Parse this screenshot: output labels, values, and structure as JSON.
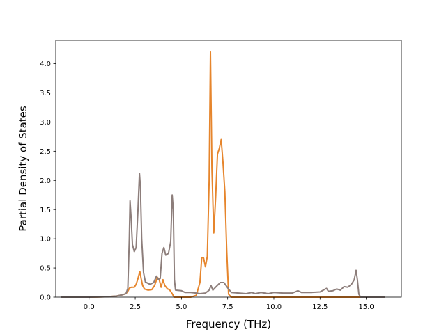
{
  "chart_data": {
    "type": "line",
    "title": "",
    "xlabel": "Frequency (THz)",
    "ylabel": "Partial Density of States",
    "xlim": [
      -1.8,
      16.9
    ],
    "ylim": [
      0.0,
      4.4
    ],
    "xticks": [
      0.0,
      2.5,
      5.0,
      7.5,
      10.0,
      12.5,
      15.0
    ],
    "xtick_labels": [
      "0.0",
      "2.5",
      "5.0",
      "7.5",
      "10.0",
      "12.5",
      "15.0"
    ],
    "yticks": [
      0.0,
      0.5,
      1.0,
      1.5,
      2.0,
      2.5,
      3.0,
      3.5,
      4.0
    ],
    "ytick_labels": [
      "0.0",
      "0.5",
      "1.0",
      "1.5",
      "2.0",
      "2.5",
      "3.0",
      "3.5",
      "4.0"
    ],
    "grid": false,
    "legend": "none",
    "series": [
      {
        "color": "#e6852c",
        "points": [
          [
            -1.5,
            0.0
          ],
          [
            0.0,
            0.0
          ],
          [
            0.5,
            0.003
          ],
          [
            1.0,
            0.008
          ],
          [
            1.5,
            0.02
          ],
          [
            1.8,
            0.04
          ],
          [
            2.0,
            0.06
          ],
          [
            2.1,
            0.1
          ],
          [
            2.2,
            0.16
          ],
          [
            2.3,
            0.17
          ],
          [
            2.45,
            0.17
          ],
          [
            2.55,
            0.22
          ],
          [
            2.65,
            0.32
          ],
          [
            2.75,
            0.44
          ],
          [
            2.82,
            0.32
          ],
          [
            2.9,
            0.2
          ],
          [
            3.0,
            0.14
          ],
          [
            3.2,
            0.12
          ],
          [
            3.4,
            0.13
          ],
          [
            3.55,
            0.2
          ],
          [
            3.7,
            0.34
          ],
          [
            3.8,
            0.3
          ],
          [
            3.9,
            0.17
          ],
          [
            4.0,
            0.3
          ],
          [
            4.1,
            0.2
          ],
          [
            4.25,
            0.14
          ],
          [
            4.35,
            0.13
          ],
          [
            4.5,
            0.06
          ],
          [
            4.6,
            0.0
          ],
          [
            5.5,
            0.0
          ],
          [
            5.8,
            0.03
          ],
          [
            6.0,
            0.25
          ],
          [
            6.1,
            0.68
          ],
          [
            6.2,
            0.67
          ],
          [
            6.3,
            0.52
          ],
          [
            6.4,
            0.7
          ],
          [
            6.5,
            2.0
          ],
          [
            6.57,
            4.2
          ],
          [
            6.65,
            2.2
          ],
          [
            6.75,
            1.1
          ],
          [
            6.85,
            1.7
          ],
          [
            6.95,
            2.45
          ],
          [
            7.05,
            2.55
          ],
          [
            7.15,
            2.7
          ],
          [
            7.25,
            2.3
          ],
          [
            7.35,
            1.8
          ],
          [
            7.45,
            0.8
          ],
          [
            7.55,
            0.05
          ],
          [
            7.7,
            0.0
          ],
          [
            16.0,
            0.0
          ]
        ]
      },
      {
        "color": "#8d7e7b",
        "points": [
          [
            -1.5,
            0.0
          ],
          [
            0.0,
            0.0
          ],
          [
            0.5,
            0.003
          ],
          [
            1.0,
            0.008
          ],
          [
            1.5,
            0.02
          ],
          [
            1.8,
            0.04
          ],
          [
            2.0,
            0.06
          ],
          [
            2.1,
            0.15
          ],
          [
            2.18,
            1.0
          ],
          [
            2.22,
            1.65
          ],
          [
            2.28,
            1.35
          ],
          [
            2.35,
            0.9
          ],
          [
            2.45,
            0.78
          ],
          [
            2.55,
            0.85
          ],
          [
            2.65,
            1.5
          ],
          [
            2.73,
            2.12
          ],
          [
            2.78,
            1.9
          ],
          [
            2.85,
            1.0
          ],
          [
            2.95,
            0.42
          ],
          [
            3.05,
            0.26
          ],
          [
            3.3,
            0.22
          ],
          [
            3.5,
            0.25
          ],
          [
            3.65,
            0.36
          ],
          [
            3.75,
            0.3
          ],
          [
            3.85,
            0.32
          ],
          [
            3.95,
            0.75
          ],
          [
            4.05,
            0.85
          ],
          [
            4.15,
            0.72
          ],
          [
            4.3,
            0.75
          ],
          [
            4.42,
            0.95
          ],
          [
            4.5,
            1.75
          ],
          [
            4.56,
            1.5
          ],
          [
            4.62,
            0.3
          ],
          [
            4.68,
            0.12
          ],
          [
            5.0,
            0.11
          ],
          [
            5.2,
            0.08
          ],
          [
            5.5,
            0.08
          ],
          [
            5.8,
            0.07
          ],
          [
            6.0,
            0.06
          ],
          [
            6.3,
            0.07
          ],
          [
            6.5,
            0.12
          ],
          [
            6.6,
            0.2
          ],
          [
            6.7,
            0.12
          ],
          [
            6.85,
            0.17
          ],
          [
            7.1,
            0.25
          ],
          [
            7.3,
            0.25
          ],
          [
            7.5,
            0.16
          ],
          [
            7.7,
            0.08
          ],
          [
            8.5,
            0.06
          ],
          [
            8.8,
            0.08
          ],
          [
            9.0,
            0.06
          ],
          [
            9.3,
            0.08
          ],
          [
            9.7,
            0.06
          ],
          [
            10.0,
            0.08
          ],
          [
            10.5,
            0.07
          ],
          [
            11.0,
            0.07
          ],
          [
            11.3,
            0.11
          ],
          [
            11.5,
            0.08
          ],
          [
            12.0,
            0.08
          ],
          [
            12.5,
            0.09
          ],
          [
            12.85,
            0.15
          ],
          [
            12.95,
            0.1
          ],
          [
            13.2,
            0.11
          ],
          [
            13.4,
            0.14
          ],
          [
            13.6,
            0.12
          ],
          [
            13.8,
            0.18
          ],
          [
            14.0,
            0.17
          ],
          [
            14.2,
            0.22
          ],
          [
            14.35,
            0.3
          ],
          [
            14.45,
            0.46
          ],
          [
            14.52,
            0.3
          ],
          [
            14.6,
            0.05
          ],
          [
            14.7,
            0.0
          ],
          [
            16.0,
            0.0
          ]
        ]
      }
    ]
  }
}
